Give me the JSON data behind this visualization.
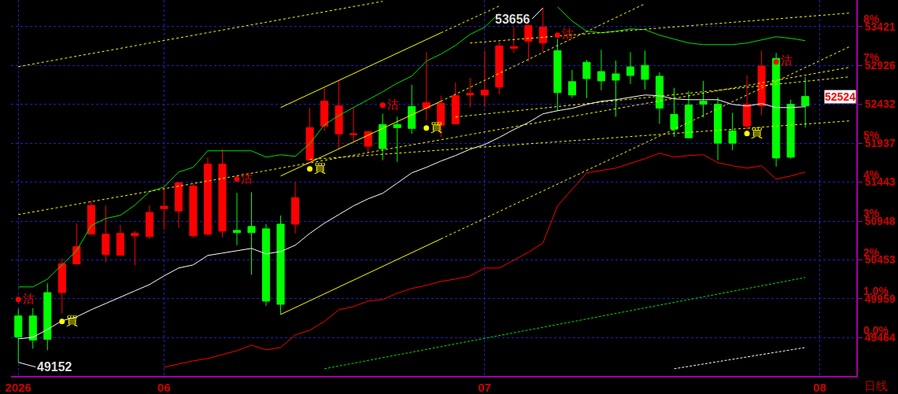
{
  "chart_data": {
    "type": "candlestick",
    "categories": [
      "2026",
      null,
      null,
      null,
      null,
      null,
      null,
      null,
      null,
      null,
      "06",
      null,
      null,
      null,
      null,
      null,
      null,
      null,
      null,
      null,
      null,
      null,
      null,
      null,
      null,
      null,
      null,
      null,
      null,
      null,
      null,
      null,
      "07",
      null,
      null,
      null,
      null,
      null,
      null,
      null,
      null,
      null,
      null,
      null,
      null,
      null,
      null,
      null,
      null,
      null,
      null,
      null,
      null,
      null,
      null,
      "08",
      null,
      null
    ],
    "ohlc": [
      [
        49741,
        49830,
        49152,
        49474
      ],
      [
        49741,
        49840,
        49326,
        49434
      ],
      [
        50038,
        50156,
        49306,
        49444
      ],
      [
        50038,
        50473,
        49771,
        50404
      ],
      [
        50404,
        50918,
        50400,
        50621
      ],
      [
        50780,
        51205,
        50780,
        51146
      ],
      [
        50522,
        51146,
        50424,
        50780
      ],
      [
        50513,
        50898,
        50513,
        50790
      ],
      [
        50760,
        50819,
        50384,
        50790
      ],
      [
        50750,
        51146,
        50720,
        51057
      ],
      [
        51106,
        51383,
        50839,
        51136
      ],
      [
        51076,
        51442,
        50859,
        51433
      ],
      [
        50760,
        51423,
        50740,
        51393
      ],
      [
        50780,
        51759,
        50760,
        51670
      ],
      [
        50819,
        51858,
        50740,
        51670
      ],
      [
        50829,
        51304,
        50641,
        50800
      ],
      [
        50879,
        51314,
        50265,
        50800
      ],
      [
        50849,
        50908,
        49870,
        49929
      ],
      [
        50908,
        51017,
        49761,
        49889
      ],
      [
        50908,
        51442,
        50790,
        51245
      ],
      [
        51720,
        52382,
        51720,
        52135
      ],
      [
        52155,
        52640,
        52095,
        52471
      ],
      [
        52056,
        52738,
        51858,
        52412
      ],
      [
        52046,
        52392,
        51957,
        52056
      ],
      [
        51898,
        52090,
        51809,
        52085
      ],
      [
        52174,
        52313,
        51720,
        51868
      ],
      [
        52174,
        52273,
        51700,
        52135
      ],
      [
        52402,
        52679,
        52056,
        52125
      ],
      [
        52382,
        53094,
        52224,
        52451
      ],
      [
        52165,
        52541,
        52016,
        52442
      ],
      [
        52184,
        52709,
        52180,
        52541
      ],
      [
        52550,
        52768,
        52392,
        52570
      ],
      [
        52550,
        53114,
        52392,
        52610
      ],
      [
        52649,
        53223,
        52560,
        53174
      ],
      [
        53144,
        53411,
        53085,
        53164
      ],
      [
        53233,
        53440,
        52976,
        53431
      ],
      [
        53213,
        53656,
        53094,
        53411
      ],
      [
        53114,
        53263,
        52343,
        52580
      ],
      [
        52719,
        52867,
        52511,
        52550
      ],
      [
        52966,
        52996,
        52511,
        52758
      ],
      [
        52847,
        53124,
        52610,
        52729
      ],
      [
        52818,
        52986,
        52273,
        52738
      ],
      [
        52907,
        53094,
        52689,
        52798
      ],
      [
        52926,
        53114,
        52620,
        52748
      ],
      [
        52788,
        52837,
        52184,
        52382
      ],
      [
        52303,
        52640,
        52016,
        52115
      ],
      [
        52422,
        52600,
        52000,
        52006
      ],
      [
        52471,
        52729,
        52264,
        52432
      ],
      [
        52432,
        52521,
        51720,
        51937
      ],
      [
        52095,
        52323,
        51848,
        51937
      ],
      [
        52155,
        52798,
        52105,
        52432
      ],
      [
        52412,
        53114,
        52293,
        52917
      ],
      [
        53015,
        53085,
        51640,
        51749
      ],
      [
        52432,
        52491,
        51740,
        51759
      ],
      [
        52531,
        52778,
        52135,
        52412
      ],
      null,
      null,
      null
    ],
    "colors": [
      "#00ff00",
      "#00ff00",
      "#00ff00",
      "#ff0000",
      "#ff0000",
      "#ff0000",
      "#ff0000",
      "#ff0000",
      "#ff0000",
      "#ff0000",
      "#ff0000",
      "#ff0000",
      "#ff0000",
      "#ff0000",
      "#ff0000",
      "#00ff00",
      "#00ff00",
      "#00ff00",
      "#00ff00",
      "#ff0000",
      "#ff0000",
      "#ff0000",
      "#ff0000",
      "#ff0000",
      "#ff0000",
      "#00ff00",
      "#00ff00",
      "#00ff00",
      "#ff0000",
      "#ff0000",
      "#ff0000",
      "#ff0000",
      "#ff0000",
      "#ff0000",
      "#ff0000",
      "#ff0000",
      "#ff0000",
      "#00ff00",
      "#00ff00",
      "#00ff00",
      "#00ff00",
      "#00ff00",
      "#00ff00",
      "#00ff00",
      "#00ff00",
      "#00ff00",
      "#00ff00",
      "#00ff00",
      "#00ff00",
      "#00ff00",
      "#ff0000",
      "#ff0000",
      "#00ff00",
      "#00ff00",
      "#00ff00",
      null,
      null,
      null
    ],
    "ylim": [
      48979,
      53757
    ],
    "yticks": [
      49464,
      49959,
      50453,
      50948,
      51443,
      51937,
      52432,
      52926,
      53421
    ],
    "y2lim": [
      -0.98,
      8.68
    ],
    "y2ticks": [
      {
        "value": 0,
        "label": "0.0%"
      },
      {
        "value": 1,
        "label": "1.0%"
      },
      {
        "value": 2,
        "label": "2%"
      },
      {
        "value": 3,
        "label": "3%"
      },
      {
        "value": 4,
        "label": "4%"
      },
      {
        "value": 5,
        "label": "5%"
      },
      {
        "value": 6,
        "label": null
      },
      {
        "value": 7,
        "label": "7%"
      },
      {
        "value": 8,
        "label": "8%"
      }
    ],
    "grid": true,
    "series": [
      {
        "type": "line",
        "color": "#00e000",
        "line_style": "solid",
        "values": [
          50110,
          50110,
          50210,
          50390,
          50570,
          50890,
          50980,
          51020,
          51150,
          51320,
          51380,
          51570,
          51630,
          51840,
          51840,
          51840,
          51840,
          51760,
          51790,
          51770,
          51930,
          52170,
          52290,
          52390,
          52490,
          52590,
          52700,
          52790,
          52980,
          53070,
          53180,
          53320,
          53410,
          53590,
          null,
          null,
          null,
          53670,
          53490,
          53360,
          53340,
          53360,
          53390,
          53380,
          53310,
          53260,
          53210,
          53190,
          53190,
          53190,
          53210,
          53250,
          53290,
          53270,
          53240,
          null,
          null,
          null
        ]
      },
      {
        "type": "line",
        "color": "#ffffff",
        "line_style": "solid",
        "values": [
          49450,
          49470,
          49570,
          49680,
          49730,
          49820,
          49900,
          49980,
          50060,
          50140,
          50250,
          50350,
          50390,
          50510,
          50540,
          50570,
          50600,
          50530,
          50560,
          50640,
          50790,
          50920,
          51030,
          51140,
          51230,
          51300,
          51430,
          51560,
          51630,
          51710,
          51780,
          51860,
          51920,
          52010,
          52110,
          52200,
          52310,
          52350,
          52380,
          52430,
          52470,
          52490,
          52520,
          52550,
          52540,
          52500,
          52490,
          52490,
          52490,
          52430,
          52410,
          52440,
          52390,
          52390,
          52400,
          null,
          null,
          null
        ]
      },
      {
        "type": "line",
        "color": "#ff0000",
        "line_style": "solid",
        "values": [
          null,
          null,
          null,
          null,
          null,
          null,
          null,
          null,
          null,
          null,
          49090,
          49130,
          49170,
          49200,
          49250,
          49300,
          49370,
          49310,
          49340,
          49500,
          49560,
          49670,
          49820,
          49860,
          49930,
          49950,
          50030,
          50090,
          50130,
          50180,
          50210,
          50250,
          50350,
          50350,
          50450,
          50550,
          50670,
          51140,
          51350,
          51560,
          51590,
          51620,
          51680,
          51740,
          51810,
          51760,
          51780,
          51790,
          51690,
          51650,
          51620,
          51650,
          51480,
          51520,
          51570,
          null,
          null,
          null
        ]
      },
      {
        "type": "line",
        "color": "#ffff00",
        "line_style": "solid",
        "values": [
          null,
          null,
          null,
          null,
          null,
          null,
          null,
          null,
          null,
          null,
          null,
          null,
          null,
          null,
          null,
          null,
          null,
          null,
          52390,
          null,
          null,
          null,
          null,
          null,
          null,
          null,
          null,
          null,
          null,
          53340,
          null,
          null,
          null,
          null,
          null,
          null,
          null,
          null,
          null,
          null,
          null,
          null,
          null,
          null,
          null,
          null,
          null,
          null,
          null,
          null,
          null,
          null,
          null,
          null,
          null,
          null,
          null,
          null
        ]
      },
      {
        "type": "line",
        "color": "#ffff00",
        "line_style": "solid",
        "values": [
          null,
          null,
          null,
          null,
          null,
          null,
          null,
          null,
          null,
          null,
          null,
          null,
          null,
          null,
          null,
          null,
          null,
          null,
          51520,
          null,
          null,
          null,
          null,
          null,
          null,
          null,
          null,
          null,
          null,
          52470,
          null,
          null,
          null,
          null,
          null,
          null,
          null,
          null,
          null,
          null,
          null,
          null,
          null,
          null,
          null,
          null,
          null,
          null,
          null,
          null,
          null,
          null,
          null,
          null,
          null,
          null,
          null,
          null
        ]
      },
      {
        "type": "line",
        "color": "#ffff00",
        "line_style": "solid",
        "values": [
          null,
          null,
          null,
          null,
          null,
          null,
          null,
          null,
          null,
          null,
          null,
          null,
          null,
          null,
          null,
          null,
          null,
          null,
          49760,
          null,
          null,
          null,
          null,
          null,
          null,
          null,
          null,
          null,
          null,
          50720,
          null,
          null,
          null,
          null,
          null,
          null,
          null,
          null,
          null,
          null,
          null,
          null,
          null,
          null,
          null,
          null,
          null,
          null,
          null,
          null,
          null,
          null,
          null,
          null,
          null,
          null,
          null,
          null
        ]
      },
      {
        "type": "line",
        "color": "#ffff00",
        "line_style": "dotted",
        "values": [
          null,
          null,
          null,
          null,
          null,
          null,
          null,
          null,
          null,
          null,
          null,
          null,
          null,
          null,
          null,
          null,
          null,
          null,
          null,
          null,
          null,
          null,
          null,
          null,
          null,
          null,
          null,
          null,
          null,
          53340,
          null,
          null,
          null,
          53680,
          null,
          null,
          null,
          null,
          null,
          null,
          null,
          null,
          null,
          null,
          null,
          null,
          null,
          null,
          null,
          null,
          null,
          null,
          null,
          null,
          null,
          null,
          null,
          null
        ]
      },
      {
        "type": "line",
        "color": "#ffff00",
        "line_style": "dotted",
        "values": [
          null,
          null,
          null,
          null,
          null,
          null,
          null,
          null,
          null,
          null,
          null,
          null,
          null,
          null,
          null,
          null,
          null,
          null,
          null,
          null,
          null,
          null,
          null,
          null,
          null,
          null,
          null,
          null,
          null,
          52470,
          null,
          null,
          null,
          null,
          null,
          null,
          null,
          null,
          null,
          null,
          null,
          null,
          null,
          53710,
          null,
          null,
          null,
          null,
          null,
          null,
          null,
          null,
          null,
          null,
          null,
          null,
          null,
          null
        ]
      },
      {
        "type": "line",
        "color": "#ffff00",
        "line_style": "dotted",
        "values": [
          null,
          null,
          null,
          null,
          null,
          null,
          null,
          null,
          null,
          null,
          null,
          null,
          null,
          null,
          null,
          null,
          null,
          null,
          null,
          null,
          null,
          null,
          null,
          null,
          null,
          null,
          null,
          null,
          null,
          50720,
          null,
          null,
          null,
          null,
          null,
          null,
          null,
          null,
          null,
          null,
          null,
          null,
          null,
          null,
          null,
          null,
          null,
          null,
          null,
          null,
          null,
          null,
          null,
          null,
          null,
          null,
          null,
          53160
        ]
      },
      {
        "type": "line",
        "color": "#ffff00",
        "line_style": "dotted",
        "values": [
          52910,
          null,
          null,
          null,
          null,
          null,
          null,
          null,
          null,
          null,
          null,
          null,
          null,
          null,
          null,
          null,
          null,
          null,
          null,
          null,
          null,
          null,
          null,
          null,
          null,
          53740,
          null,
          null,
          null,
          null,
          null,
          null,
          null,
          null,
          null,
          null,
          null,
          null,
          null,
          null,
          null,
          null,
          null,
          null,
          null,
          null,
          null,
          null,
          null,
          null,
          null,
          null,
          null,
          null,
          null,
          null,
          null,
          null
        ]
      },
      {
        "type": "line",
        "color": "#ffff00",
        "line_style": "dotted",
        "values": [
          51030,
          null,
          null,
          null,
          null,
          null,
          null,
          null,
          null,
          null,
          null,
          null,
          null,
          null,
          null,
          null,
          null,
          null,
          null,
          null,
          null,
          null,
          null,
          null,
          null,
          null,
          null,
          null,
          null,
          null,
          null,
          null,
          null,
          null,
          null,
          null,
          null,
          null,
          null,
          null,
          null,
          null,
          null,
          null,
          null,
          null,
          null,
          null,
          null,
          null,
          null,
          null,
          null,
          null,
          null,
          null,
          null,
          52900
        ]
      },
      {
        "type": "line",
        "color": "#ffff00",
        "line_style": "dotted",
        "values": [
          null,
          null,
          null,
          null,
          null,
          null,
          null,
          null,
          null,
          null,
          null,
          null,
          null,
          null,
          null,
          null,
          null,
          null,
          null,
          null,
          null,
          null,
          null,
          null,
          null,
          null,
          null,
          null,
          null,
          null,
          null,
          53210,
          null,
          null,
          null,
          null,
          null,
          null,
          null,
          null,
          null,
          null,
          null,
          null,
          null,
          null,
          null,
          null,
          null,
          null,
          null,
          null,
          null,
          null,
          null,
          null,
          null,
          53590
        ]
      },
      {
        "type": "line",
        "color": "#ffff00",
        "line_style": "dotted",
        "values": [
          null,
          null,
          null,
          null,
          null,
          null,
          null,
          null,
          null,
          null,
          null,
          null,
          null,
          null,
          null,
          null,
          null,
          null,
          null,
          null,
          null,
          null,
          null,
          null,
          null,
          null,
          null,
          null,
          null,
          null,
          52270,
          null,
          null,
          null,
          null,
          null,
          null,
          null,
          null,
          null,
          null,
          null,
          null,
          null,
          null,
          null,
          null,
          null,
          null,
          null,
          null,
          null,
          null,
          null,
          null,
          null,
          null,
          52780
        ]
      },
      {
        "type": "line",
        "color": "#ffff00",
        "line_style": "dotted",
        "values": [
          null,
          null,
          null,
          null,
          null,
          null,
          null,
          null,
          null,
          null,
          null,
          null,
          null,
          null,
          null,
          null,
          null,
          null,
          null,
          null,
          51730,
          null,
          null,
          null,
          null,
          null,
          null,
          null,
          null,
          null,
          null,
          null,
          null,
          null,
          null,
          null,
          null,
          null,
          null,
          null,
          null,
          null,
          null,
          null,
          null,
          null,
          null,
          null,
          null,
          null,
          null,
          null,
          null,
          null,
          null,
          null,
          null,
          52220
        ]
      },
      {
        "type": "line",
        "color": "#00e000",
        "line_style": "dashed",
        "values": [
          null,
          null,
          null,
          null,
          null,
          null,
          null,
          null,
          null,
          null,
          null,
          null,
          null,
          null,
          null,
          null,
          null,
          null,
          null,
          null,
          null,
          49070,
          null,
          null,
          null,
          null,
          null,
          null,
          null,
          null,
          null,
          null,
          null,
          null,
          null,
          null,
          null,
          null,
          null,
          null,
          null,
          null,
          null,
          null,
          null,
          null,
          null,
          null,
          null,
          null,
          null,
          null,
          null,
          null,
          50230,
          null,
          null,
          null
        ]
      },
      {
        "type": "line",
        "color": "#ffffff",
        "line_style": "dashed",
        "values": [
          null,
          null,
          null,
          null,
          null,
          null,
          null,
          null,
          null,
          null,
          null,
          null,
          null,
          null,
          null,
          null,
          null,
          null,
          null,
          null,
          null,
          null,
          null,
          null,
          null,
          null,
          null,
          null,
          null,
          null,
          null,
          null,
          null,
          null,
          null,
          null,
          null,
          null,
          null,
          null,
          null,
          null,
          null,
          null,
          null,
          49070,
          null,
          null,
          null,
          null,
          null,
          null,
          null,
          null,
          49340,
          null,
          null,
          null
        ]
      },
      {
        "type": "scatter",
        "name": "沽",
        "color": "#ff0000",
        "values": [
          49950,
          null,
          null,
          null,
          null,
          null,
          null,
          null,
          null,
          null,
          null,
          null,
          null,
          null,
          null,
          51480,
          null,
          null,
          null,
          null,
          null,
          null,
          null,
          null,
          null,
          52420,
          null,
          null,
          null,
          null,
          null,
          null,
          null,
          null,
          null,
          null,
          null,
          53310,
          null,
          null,
          null,
          null,
          null,
          null,
          null,
          null,
          null,
          null,
          null,
          null,
          null,
          null,
          52970,
          null,
          null,
          null,
          null,
          null
        ]
      },
      {
        "type": "scatter",
        "name": "買",
        "color": "#ffff00",
        "values": [
          null,
          null,
          null,
          49670,
          null,
          null,
          null,
          null,
          null,
          null,
          null,
          null,
          null,
          null,
          null,
          null,
          null,
          null,
          null,
          null,
          51610,
          null,
          null,
          null,
          null,
          null,
          null,
          null,
          52130,
          null,
          null,
          null,
          null,
          null,
          null,
          null,
          null,
          null,
          null,
          null,
          null,
          null,
          null,
          null,
          null,
          null,
          null,
          null,
          null,
          null,
          52060,
          null,
          null,
          null,
          null,
          null,
          null,
          null
        ]
      }
    ],
    "annotations": [
      "53656",
      "49152",
      "52524",
      "日线"
    ]
  }
}
